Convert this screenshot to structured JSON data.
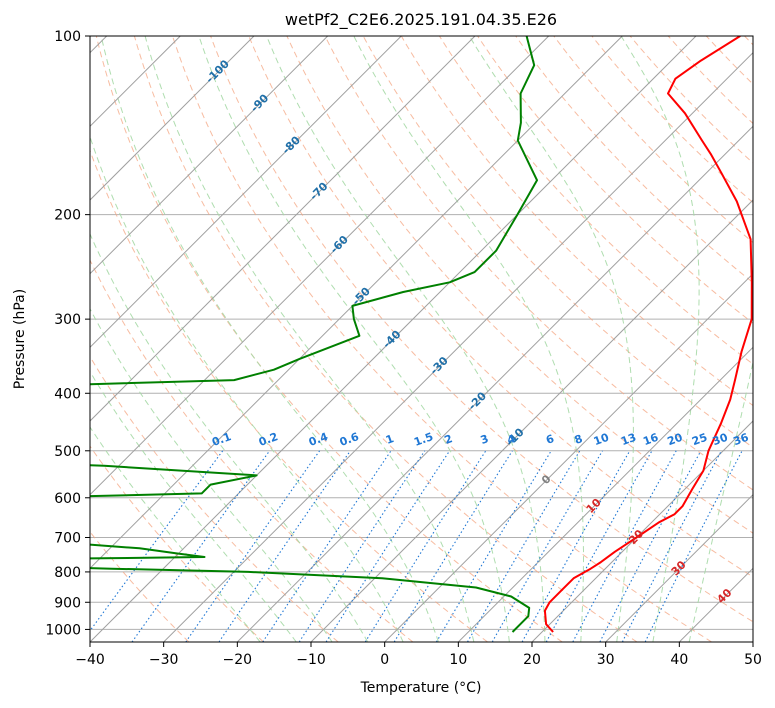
{
  "chart_data": {
    "type": "line",
    "subtype": "skew-t log-p diagram",
    "title": "wetPf2_C2E6.2025.191.04.35.E26",
    "xlabel": "Temperature (°C)",
    "ylabel": "Pressure (hPa)",
    "xlim": [
      -40,
      50
    ],
    "ylim": [
      1050,
      100
    ],
    "yscale": "log",
    "x_ticks": [
      -40,
      -30,
      -20,
      -10,
      0,
      10,
      20,
      30,
      40,
      50
    ],
    "y_ticks": [
      100,
      200,
      300,
      400,
      500,
      600,
      700,
      800,
      900,
      1000
    ],
    "grid": true,
    "colors": {
      "temperature": "#ff0000",
      "dewpoint": "#008000",
      "isotherm": "#a0a0a0",
      "dry_adiabat": "#f4a582",
      "moist_adiabat": "#a6d9a6",
      "mixing_ratio": "#1f77d4",
      "isotherm_label": "#1f6fa8",
      "red_label": "#d62728",
      "grid": "#b0b0b0"
    },
    "isotherm_labels": [
      {
        "text": "-100",
        "t": -100,
        "p": 115
      },
      {
        "text": "-90",
        "t": -90,
        "p": 130
      },
      {
        "text": "-80",
        "t": -80,
        "p": 153
      },
      {
        "text": "-70",
        "t": -70,
        "p": 183
      },
      {
        "text": "-60",
        "t": -60,
        "p": 225
      },
      {
        "text": "-50",
        "t": -50,
        "p": 275
      },
      {
        "text": "-40",
        "t": -40,
        "p": 325
      },
      {
        "text": "-30",
        "t": -30,
        "p": 360
      },
      {
        "text": "-20",
        "t": -20,
        "p": 413
      },
      {
        "text": "-10",
        "t": -10,
        "p": 475
      },
      {
        "text": "0",
        "t": 0,
        "p": 560
      }
    ],
    "red_labels": [
      {
        "text": "10",
        "t": 10,
        "p": 620
      },
      {
        "text": "20",
        "t": 20,
        "p": 700
      },
      {
        "text": "30",
        "t": 30,
        "p": 790
      },
      {
        "text": "40",
        "t": 40,
        "p": 880
      }
    ],
    "mixing_ratio_labels": [
      "0.1",
      "0.2",
      "0.4",
      "0.6",
      "1",
      "1.5",
      "2",
      "3",
      "4",
      "6",
      "8",
      "10",
      "13",
      "16",
      "20",
      "25",
      "30",
      "36"
    ],
    "series": [
      {
        "name": "",
        "role": "temperature",
        "points": [
          {
            "p": 1010,
            "t": 21.5
          },
          {
            "p": 980,
            "t": 19.5
          },
          {
            "p": 930,
            "t": 17.5
          },
          {
            "p": 900,
            "t": 17
          },
          {
            "p": 860,
            "t": 17
          },
          {
            "p": 820,
            "t": 17
          },
          {
            "p": 790,
            "t": 18
          },
          {
            "p": 770,
            "t": 18.5
          },
          {
            "p": 740,
            "t": 19
          },
          {
            "p": 700,
            "t": 20
          },
          {
            "p": 660,
            "t": 21
          },
          {
            "p": 640,
            "t": 22
          },
          {
            "p": 620,
            "t": 22
          },
          {
            "p": 580,
            "t": 21
          },
          {
            "p": 540,
            "t": 20
          },
          {
            "p": 500,
            "t": 18
          },
          {
            "p": 450,
            "t": 16
          },
          {
            "p": 410,
            "t": 14
          },
          {
            "p": 380,
            "t": 12
          },
          {
            "p": 340,
            "t": 9
          },
          {
            "p": 300,
            "t": 6
          },
          {
            "p": 260,
            "t": 1
          },
          {
            "p": 220,
            "t": -5
          },
          {
            "p": 190,
            "t": -12
          },
          {
            "p": 170,
            "t": -18
          },
          {
            "p": 158,
            "t": -22
          },
          {
            "p": 150,
            "t": -25
          },
          {
            "p": 135,
            "t": -31
          },
          {
            "p": 125,
            "t": -36
          },
          {
            "p": 118,
            "t": -37
          },
          {
            "p": 110,
            "t": -36
          },
          {
            "p": 100,
            "t": -34
          }
        ]
      },
      {
        "name": "",
        "role": "dewpoint",
        "points": [
          {
            "p": 1010,
            "t": 16
          },
          {
            "p": 980,
            "t": 16
          },
          {
            "p": 950,
            "t": 16
          },
          {
            "p": 920,
            "t": 15
          },
          {
            "p": 880,
            "t": 11
          },
          {
            "p": 850,
            "t": 5
          },
          {
            "p": 820,
            "t": -9
          },
          {
            "p": 800,
            "t": -28
          },
          {
            "p": 790,
            "t": -47
          },
          {
            "p": 780,
            "t": -65
          },
          {
            "p": 765,
            "t": -73
          },
          {
            "p": 755,
            "t": -36
          },
          {
            "p": 745,
            "t": -40
          },
          {
            "p": 730,
            "t": -46
          },
          {
            "p": 710,
            "t": -60
          },
          {
            "p": 690,
            "t": -76
          },
          {
            "p": 640,
            "t": -76
          },
          {
            "p": 605,
            "t": -80
          },
          {
            "p": 590,
            "t": -45
          },
          {
            "p": 570,
            "t": -45
          },
          {
            "p": 550,
            "t": -40
          },
          {
            "p": 530,
            "t": -62
          },
          {
            "p": 515,
            "t": -87
          },
          {
            "p": 500,
            "t": -87
          },
          {
            "p": 420,
            "t": -87
          },
          {
            "p": 390,
            "t": -87
          },
          {
            "p": 380,
            "t": -56
          },
          {
            "p": 365,
            "t": -52
          },
          {
            "p": 350,
            "t": -50
          },
          {
            "p": 320,
            "t": -45
          },
          {
            "p": 300,
            "t": -48
          },
          {
            "p": 285,
            "t": -50
          },
          {
            "p": 270,
            "t": -45
          },
          {
            "p": 260,
            "t": -40
          },
          {
            "p": 250,
            "t": -38
          },
          {
            "p": 230,
            "t": -38
          },
          {
            "p": 200,
            "t": -40
          },
          {
            "p": 175,
            "t": -42
          },
          {
            "p": 150,
            "t": -50
          },
          {
            "p": 140,
            "t": -52
          },
          {
            "p": 125,
            "t": -56
          },
          {
            "p": 112,
            "t": -58
          },
          {
            "p": 100,
            "t": -63
          }
        ]
      }
    ]
  }
}
